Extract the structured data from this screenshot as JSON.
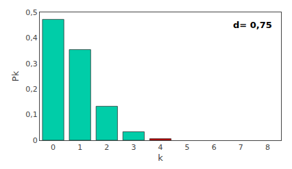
{
  "chart_data": {
    "type": "bar",
    "x": [
      0,
      1,
      2,
      3,
      4
    ],
    "values": [
      0.4724,
      0.3543,
      0.1329,
      0.0332,
      0.0062
    ],
    "colors": [
      "#00CDA8",
      "#00CDA8",
      "#00CDA8",
      "#00CDA8",
      "#CC0000"
    ],
    "xlim": [
      -0.5,
      8.5
    ],
    "xticks": [
      0,
      1,
      2,
      3,
      4,
      5,
      6,
      7,
      8
    ],
    "ylim": [
      0,
      0.5
    ],
    "yticks": [
      0,
      {
        "value": 0.1,
        "label": "0,1"
      },
      {
        "value": 0.2,
        "label": "0,2"
      },
      {
        "value": 0.3,
        "label": "0,3"
      },
      {
        "value": 0.4,
        "label": "0,4"
      },
      {
        "value": 0.5,
        "label": "0,5"
      }
    ],
    "xlabel": "k",
    "ylabel": "Pk",
    "annotation": "d= 0,75",
    "grid": false
  }
}
